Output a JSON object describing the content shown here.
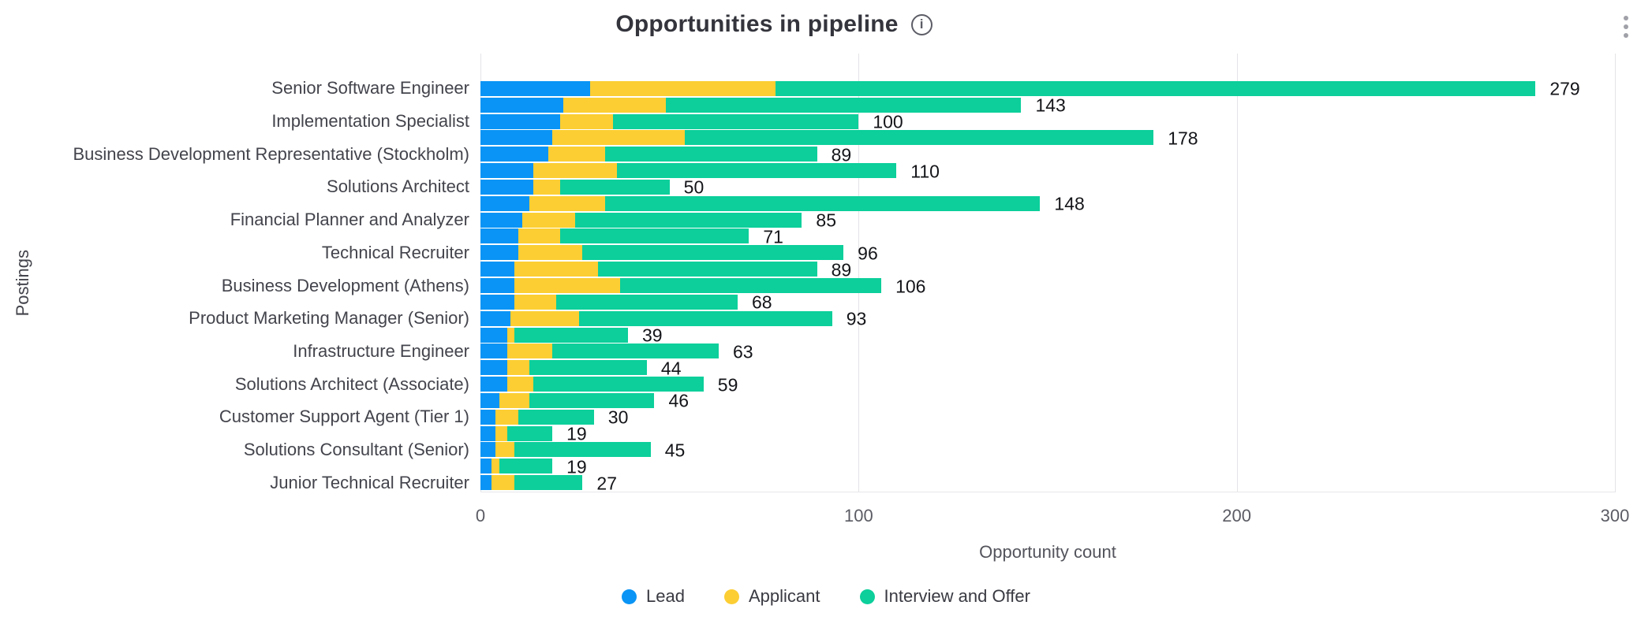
{
  "header": {
    "title": "Opportunities in pipeline",
    "info_icon": "info-icon",
    "menu_icon": "kebab-menu-icon"
  },
  "colors": {
    "lead": "#0a94f5",
    "applicant": "#fcce33",
    "interview_and_offer": "#0ccf9b",
    "gridline": "#e4e4e8",
    "title_text": "#33343c",
    "category_text": "#43444c",
    "axis_text": "#5b5c64",
    "value_text": "#141519",
    "legend_text": "#393a42",
    "icon_gray": "#5c5d66",
    "menu_gray": "#a0a1a8"
  },
  "chart_data": {
    "type": "bar",
    "orientation": "horizontal",
    "stacked": true,
    "title": "Opportunities in pipeline",
    "xlabel": "Opportunity count",
    "ylabel": "Postings",
    "xlim": [
      0,
      300
    ],
    "xticks": [
      0,
      100,
      200,
      300
    ],
    "grid": true,
    "legend_position": "bottom",
    "series_names": [
      "Lead",
      "Applicant",
      "Interview and Offer"
    ],
    "categories": [
      "Senior Software Engineer",
      "Implementation Specialist",
      "Business Development Representative (Stockholm)",
      "Solutions Architect",
      "Financial Planner and Analyzer",
      "Technical Recruiter",
      "Business Development (Athens)",
      "Product Marketing Manager (Senior)",
      "Infrastructure Engineer",
      "Solutions Architect (Associate)",
      "Customer Support Agent (Tier 1)",
      "Solutions Consultant (Senior)",
      "Junior Technical Recruiter"
    ],
    "bars": [
      {
        "posting_index": 0,
        "lead": 29,
        "applicant": 49,
        "interview_and_offer": 201,
        "total": 279
      },
      {
        "posting_index": 0,
        "lead": 22,
        "applicant": 27,
        "interview_and_offer": 94,
        "total": 143
      },
      {
        "posting_index": 1,
        "lead": 21,
        "applicant": 14,
        "interview_and_offer": 65,
        "total": 100
      },
      {
        "posting_index": 1,
        "lead": 19,
        "applicant": 35,
        "interview_and_offer": 124,
        "total": 178
      },
      {
        "posting_index": 2,
        "lead": 18,
        "applicant": 15,
        "interview_and_offer": 56,
        "total": 89
      },
      {
        "posting_index": 2,
        "lead": 14,
        "applicant": 22,
        "interview_and_offer": 74,
        "total": 110
      },
      {
        "posting_index": 3,
        "lead": 14,
        "applicant": 7,
        "interview_and_offer": 29,
        "total": 50
      },
      {
        "posting_index": 3,
        "lead": 13,
        "applicant": 20,
        "interview_and_offer": 115,
        "total": 148
      },
      {
        "posting_index": 4,
        "lead": 11,
        "applicant": 14,
        "interview_and_offer": 60,
        "total": 85
      },
      {
        "posting_index": 4,
        "lead": 10,
        "applicant": 11,
        "interview_and_offer": 50,
        "total": 71
      },
      {
        "posting_index": 5,
        "lead": 10,
        "applicant": 17,
        "interview_and_offer": 69,
        "total": 96
      },
      {
        "posting_index": 5,
        "lead": 9,
        "applicant": 22,
        "interview_and_offer": 58,
        "total": 89
      },
      {
        "posting_index": 6,
        "lead": 9,
        "applicant": 28,
        "interview_and_offer": 69,
        "total": 106
      },
      {
        "posting_index": 6,
        "lead": 9,
        "applicant": 11,
        "interview_and_offer": 48,
        "total": 68
      },
      {
        "posting_index": 7,
        "lead": 8,
        "applicant": 18,
        "interview_and_offer": 67,
        "total": 93
      },
      {
        "posting_index": 7,
        "lead": 7,
        "applicant": 2,
        "interview_and_offer": 30,
        "total": 39
      },
      {
        "posting_index": 8,
        "lead": 7,
        "applicant": 12,
        "interview_and_offer": 44,
        "total": 63
      },
      {
        "posting_index": 8,
        "lead": 7,
        "applicant": 6,
        "interview_and_offer": 31,
        "total": 44
      },
      {
        "posting_index": 9,
        "lead": 7,
        "applicant": 7,
        "interview_and_offer": 45,
        "total": 59
      },
      {
        "posting_index": 9,
        "lead": 5,
        "applicant": 8,
        "interview_and_offer": 33,
        "total": 46
      },
      {
        "posting_index": 10,
        "lead": 4,
        "applicant": 6,
        "interview_and_offer": 20,
        "total": 30
      },
      {
        "posting_index": 10,
        "lead": 4,
        "applicant": 3,
        "interview_and_offer": 12,
        "total": 19
      },
      {
        "posting_index": 11,
        "lead": 4,
        "applicant": 5,
        "interview_and_offer": 36,
        "total": 45
      },
      {
        "posting_index": 11,
        "lead": 3,
        "applicant": 2,
        "interview_and_offer": 14,
        "total": 19
      },
      {
        "posting_index": 12,
        "lead": 3,
        "applicant": 6,
        "interview_and_offer": 18,
        "total": 27
      }
    ]
  },
  "legend": {
    "items": [
      {
        "label": "Lead",
        "color": "#0a94f5"
      },
      {
        "label": "Applicant",
        "color": "#fcce33"
      },
      {
        "label": "Interview and Offer",
        "color": "#0ccf9b"
      }
    ]
  }
}
